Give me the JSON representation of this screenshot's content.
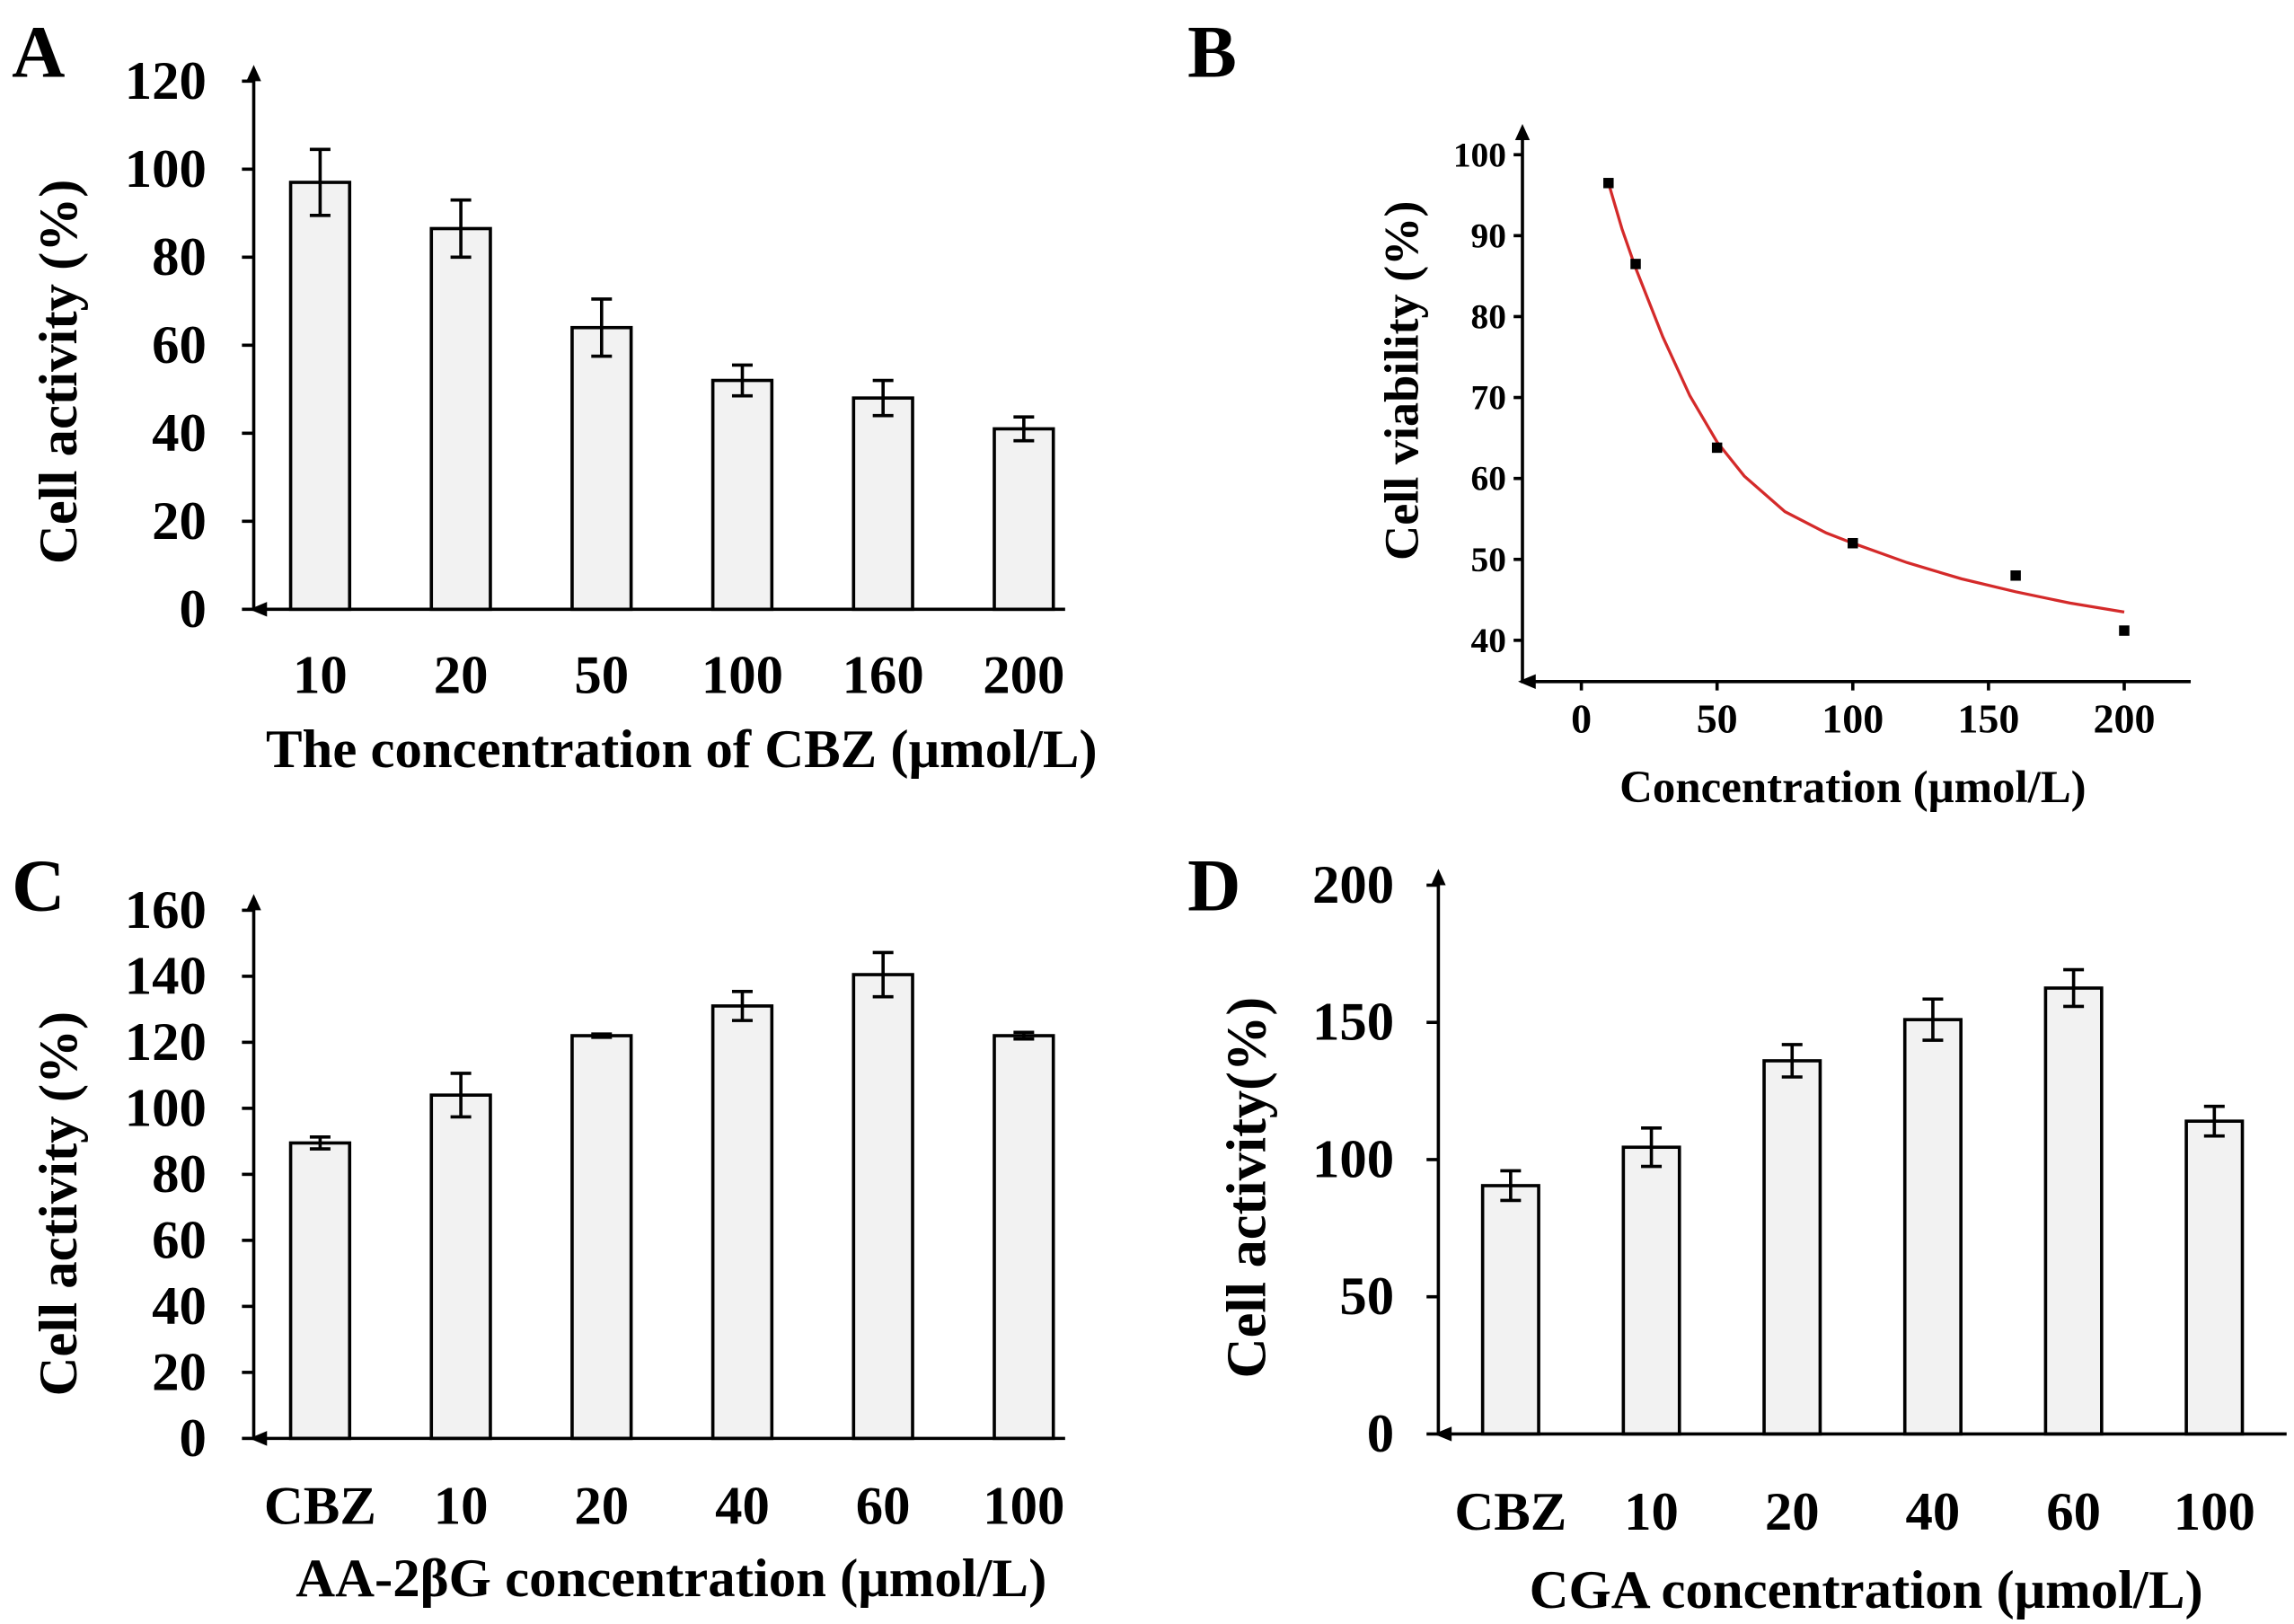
{
  "chart_data": [
    {
      "panel": "A",
      "type": "bar",
      "categories": [
        "10",
        "20",
        "50",
        "100",
        "160",
        "200"
      ],
      "values": [
        97,
        86.5,
        64,
        52,
        48,
        41
      ],
      "errors": [
        7.5,
        6.5,
        6.5,
        3.5,
        4,
        2.7
      ],
      "xlabel": "The concentration of CBZ (μmol/L)",
      "ylabel": "Cell activity (%)",
      "ylim": [
        0,
        120
      ],
      "yticks": [
        0,
        20,
        40,
        60,
        80,
        100,
        120
      ],
      "bar_color": "#f2f2f2",
      "grid": false
    },
    {
      "panel": "B",
      "type": "scatter",
      "points": {
        "x": [
          10,
          20,
          50,
          100,
          160,
          200
        ],
        "y": [
          96.5,
          86.5,
          63.8,
          52,
          48,
          41.2
        ]
      },
      "fit_curve": {
        "x": [
          10,
          15,
          20,
          30,
          40,
          50,
          60,
          75,
          90,
          100,
          120,
          140,
          160,
          180,
          200
        ],
        "y": [
          96.5,
          90.8,
          86.0,
          77.5,
          70.2,
          64.5,
          60.3,
          55.9,
          53.3,
          52.0,
          49.6,
          47.6,
          46.0,
          44.6,
          43.5
        ]
      },
      "xlabel": "Concentration (μmol/L)",
      "ylabel": "Cell viability (%)",
      "xlim": [
        -21.7,
        224.5
      ],
      "ylim": [
        34.9,
        101.8
      ],
      "xticks": [
        0,
        50,
        100,
        150,
        200
      ],
      "yticks": [
        40,
        50,
        60,
        70,
        80,
        90,
        100
      ],
      "marker_color": "#000000",
      "curve_color": "#d42a2a",
      "grid": false
    },
    {
      "panel": "C",
      "type": "bar",
      "categories": [
        "CBZ",
        "10",
        "20",
        "40",
        "60",
        "100"
      ],
      "values": [
        89.5,
        104,
        122,
        131,
        140.5,
        122
      ],
      "errors": [
        1.8,
        6.6,
        0.5,
        4.4,
        6.7,
        1
      ],
      "xlabel": "AA-2βG concentration (μmol/L)",
      "ylabel": "Cell activity (%)",
      "ylim": [
        0,
        160
      ],
      "yticks": [
        0,
        20,
        40,
        60,
        80,
        100,
        120,
        140,
        160
      ],
      "bar_color": "#f2f2f2",
      "grid": false
    },
    {
      "panel": "D",
      "type": "bar",
      "categories": [
        "CBZ",
        "10",
        "20",
        "40",
        "60",
        "100"
      ],
      "values": [
        90.5,
        104.5,
        136,
        151,
        162.5,
        114
      ],
      "errors": [
        5.4,
        7,
        5.9,
        7.5,
        6.7,
        5.4
      ],
      "xlabel": "CGA concentration (μmol/L)",
      "ylabel": "Cell activity(%)",
      "ylim": [
        0,
        200
      ],
      "yticks": [
        0,
        50,
        100,
        150,
        200
      ],
      "bar_color": "#f2f2f2",
      "grid": false
    }
  ]
}
